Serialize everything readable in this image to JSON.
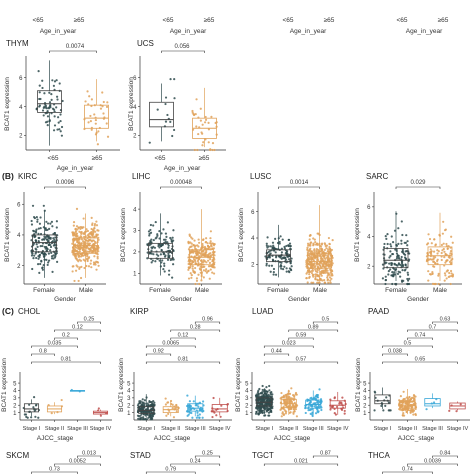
{
  "colors": {
    "dark": "#2f4b4e",
    "orange": "#e0a25a",
    "blue": "#3aa8d8",
    "red": "#c0504d",
    "box": "#333333"
  },
  "top_strip": {
    "xticks": [
      "<65",
      "≥65"
    ],
    "xlabel": "Age_in_year"
  },
  "panel_A_row2": [
    {
      "title": "THYM",
      "ylabel": "BCAT1 expression",
      "ylim": [
        1,
        7.5
      ],
      "yticks": [
        2,
        4,
        6
      ],
      "xlabel": "Age_in_year",
      "p": "0.0074",
      "groups": [
        {
          "label": "<65",
          "q1": 3.6,
          "median": 4.2,
          "q3": 5.1,
          "low": 1.3,
          "high": 7.2,
          "color": "dark",
          "n": 70
        },
        {
          "label": "≥65",
          "q1": 2.5,
          "median": 3.2,
          "q3": 4.1,
          "low": 1.6,
          "high": 5.9,
          "color": "orange",
          "n": 35
        }
      ]
    },
    {
      "title": "UCS",
      "ylabel": "BCAT1 expression",
      "ylim": [
        1,
        7.5
      ],
      "yticks": [
        2,
        4,
        6
      ],
      "xlabel": "Age_in_year",
      "p": "0.056",
      "groups": [
        {
          "label": "<65",
          "q1": 2.6,
          "median": 3.1,
          "q3": 4.3,
          "low": 1.6,
          "high": 5.6,
          "color": "dark",
          "n": 14
        },
        {
          "label": "≥65",
          "q1": 1.8,
          "median": 2.5,
          "q3": 3.2,
          "low": 1.2,
          "high": 5.3,
          "color": "orange",
          "n": 38
        }
      ]
    }
  ],
  "panel_B": {
    "label": "(B)",
    "ylabel": "BCAT1 expression",
    "xlabel": "Gender",
    "charts": [
      {
        "title": "KIRC",
        "p": "0.0096",
        "ylim": [
          0.8,
          6.8
        ],
        "yticks": [
          2,
          4,
          6
        ],
        "groups": [
          {
            "label": "Female",
            "q1": 2.9,
            "median": 3.5,
            "q3": 4.0,
            "low": 1.2,
            "high": 5.6,
            "color": "dark",
            "n": 180
          },
          {
            "label": "Male",
            "q1": 2.8,
            "median": 3.3,
            "q3": 3.8,
            "low": 1.2,
            "high": 5.4,
            "color": "orange",
            "n": 330
          }
        ]
      },
      {
        "title": "LIHC",
        "p": "0.00048",
        "ylim": [
          0.5,
          4.8
        ],
        "yticks": [
          1,
          2,
          3,
          4
        ],
        "groups": [
          {
            "label": "Female",
            "q1": 1.7,
            "median": 2.0,
            "q3": 2.4,
            "low": 0.9,
            "high": 3.8,
            "color": "dark",
            "n": 120
          },
          {
            "label": "Male",
            "q1": 1.4,
            "median": 1.75,
            "q3": 2.1,
            "low": 0.7,
            "high": 4.0,
            "color": "orange",
            "n": 250
          }
        ]
      },
      {
        "title": "LUSC",
        "p": "0.0014",
        "ylim": [
          0.5,
          7.5
        ],
        "yticks": [
          2,
          4,
          6
        ],
        "groups": [
          {
            "label": "Female",
            "q1": 2.2,
            "median": 2.7,
            "q3": 3.1,
            "low": 1.0,
            "high": 5.0,
            "color": "dark",
            "n": 130
          },
          {
            "label": "Male",
            "q1": 1.7,
            "median": 2.2,
            "q3": 2.8,
            "low": 0.8,
            "high": 6.5,
            "color": "orange",
            "n": 370
          }
        ]
      },
      {
        "title": "SARC",
        "p": "0.029",
        "ylim": [
          0.8,
          7.0
        ],
        "yticks": [
          2,
          4,
          6
        ],
        "groups": [
          {
            "label": "Female",
            "q1": 1.9,
            "median": 2.4,
            "q3": 3.2,
            "low": 1.0,
            "high": 5.7,
            "color": "dark",
            "n": 140
          },
          {
            "label": "Male",
            "q1": 2.1,
            "median": 2.7,
            "q3": 3.3,
            "low": 1.0,
            "high": 5.6,
            "color": "orange",
            "n": 120
          }
        ]
      }
    ]
  },
  "panel_C": {
    "label": "(C)",
    "ylabel": "BCAT1 expression",
    "xlabel": "AJCC_stage",
    "stages": [
      "Stage I",
      "Stage II",
      "Stage III",
      "Stage IV"
    ],
    "charts": [
      {
        "title": "CHOL",
        "pvals": [
          "0.25",
          "0.12",
          "0.2",
          "0.035",
          "0.8",
          "0.81"
        ],
        "ylim": [
          0,
          6.5
        ],
        "yticks": [
          1,
          2,
          3,
          4,
          5
        ],
        "groups": [
          {
            "q1": 1.1,
            "median": 1.5,
            "q3": 2.2,
            "low": 0.5,
            "high": 2.8,
            "color": "dark",
            "n": 19
          },
          {
            "q1": 1.1,
            "median": 1.5,
            "q3": 1.9,
            "low": 0.8,
            "high": 2.4,
            "color": "orange",
            "n": 5
          },
          {
            "q1": 3.9,
            "median": 3.95,
            "q3": 4.0,
            "low": 3.9,
            "high": 4.0,
            "color": "blue",
            "n": 2
          },
          {
            "q1": 0.8,
            "median": 1.0,
            "q3": 1.2,
            "low": 0.7,
            "high": 1.4,
            "color": "red",
            "n": 4
          }
        ]
      },
      {
        "title": "KIRP",
        "pvals": [
          "0.96",
          "0.28",
          "0.12",
          "0.0065",
          "0.92",
          "0.81"
        ],
        "ylim": [
          0,
          6.5
        ],
        "yticks": [
          1,
          2,
          3,
          4,
          5
        ],
        "groups": [
          {
            "q1": 0.9,
            "median": 1.3,
            "q3": 1.8,
            "low": 0.3,
            "high": 3.5,
            "color": "dark",
            "n": 170
          },
          {
            "q1": 1.0,
            "median": 1.4,
            "q3": 1.8,
            "low": 0.5,
            "high": 2.6,
            "color": "orange",
            "n": 22
          },
          {
            "q1": 1.2,
            "median": 1.6,
            "q3": 2.2,
            "low": 0.5,
            "high": 3.3,
            "color": "blue",
            "n": 50
          },
          {
            "q1": 1.1,
            "median": 1.5,
            "q3": 2.1,
            "low": 0.6,
            "high": 3.0,
            "color": "red",
            "n": 15
          }
        ]
      },
      {
        "title": "LUAD",
        "pvals": [
          "0.5",
          "0.89",
          "0.59",
          "0.023",
          "0.44",
          "0.57"
        ],
        "ylim": [
          0,
          6.5
        ],
        "yticks": [
          1,
          2,
          3,
          4,
          5
        ],
        "groups": [
          {
            "q1": 1.9,
            "median": 2.4,
            "q3": 3.0,
            "low": 0.8,
            "high": 4.3,
            "color": "dark",
            "n": 270
          },
          {
            "q1": 1.7,
            "median": 2.2,
            "q3": 2.8,
            "low": 0.7,
            "high": 4.1,
            "color": "orange",
            "n": 120
          },
          {
            "q1": 1.6,
            "median": 2.1,
            "q3": 2.7,
            "low": 0.7,
            "high": 4.0,
            "color": "blue",
            "n": 85
          },
          {
            "q1": 1.6,
            "median": 2.0,
            "q3": 2.6,
            "low": 0.7,
            "high": 3.8,
            "color": "red",
            "n": 26
          }
        ]
      },
      {
        "title": "PAAD",
        "pvals": [
          "0.63",
          "0.7",
          "0.74",
          "0.5",
          "0.038",
          "0.65"
        ],
        "ylim": [
          0,
          6.5
        ],
        "yticks": [
          1,
          2,
          3,
          4,
          5
        ],
        "groups": [
          {
            "q1": 2.2,
            "median": 2.6,
            "q3": 3.4,
            "low": 1.5,
            "high": 4.4,
            "color": "dark",
            "n": 18
          },
          {
            "q1": 1.6,
            "median": 2.0,
            "q3": 2.5,
            "low": 0.8,
            "high": 4.2,
            "color": "orange",
            "n": 140
          },
          {
            "q1": 1.9,
            "median": 2.2,
            "q3": 2.9,
            "low": 1.6,
            "high": 3.6,
            "color": "blue",
            "n": 4
          },
          {
            "q1": 1.5,
            "median": 1.9,
            "q3": 2.3,
            "low": 1.3,
            "high": 2.5,
            "color": "red",
            "n": 4
          }
        ]
      }
    ]
  },
  "panel_C_row2": [
    {
      "title": "SKCM",
      "pvals": [
        "0.013",
        "0.0052",
        "0.73"
      ]
    },
    {
      "title": "STAD",
      "pvals": [
        "0.25",
        "0.24",
        "0.79"
      ]
    },
    {
      "title": "TGCT",
      "pvals": [
        "0.87",
        "0.021"
      ]
    },
    {
      "title": "THCA",
      "pvals": [
        "0.84",
        "0.0039",
        "0.74"
      ]
    }
  ]
}
